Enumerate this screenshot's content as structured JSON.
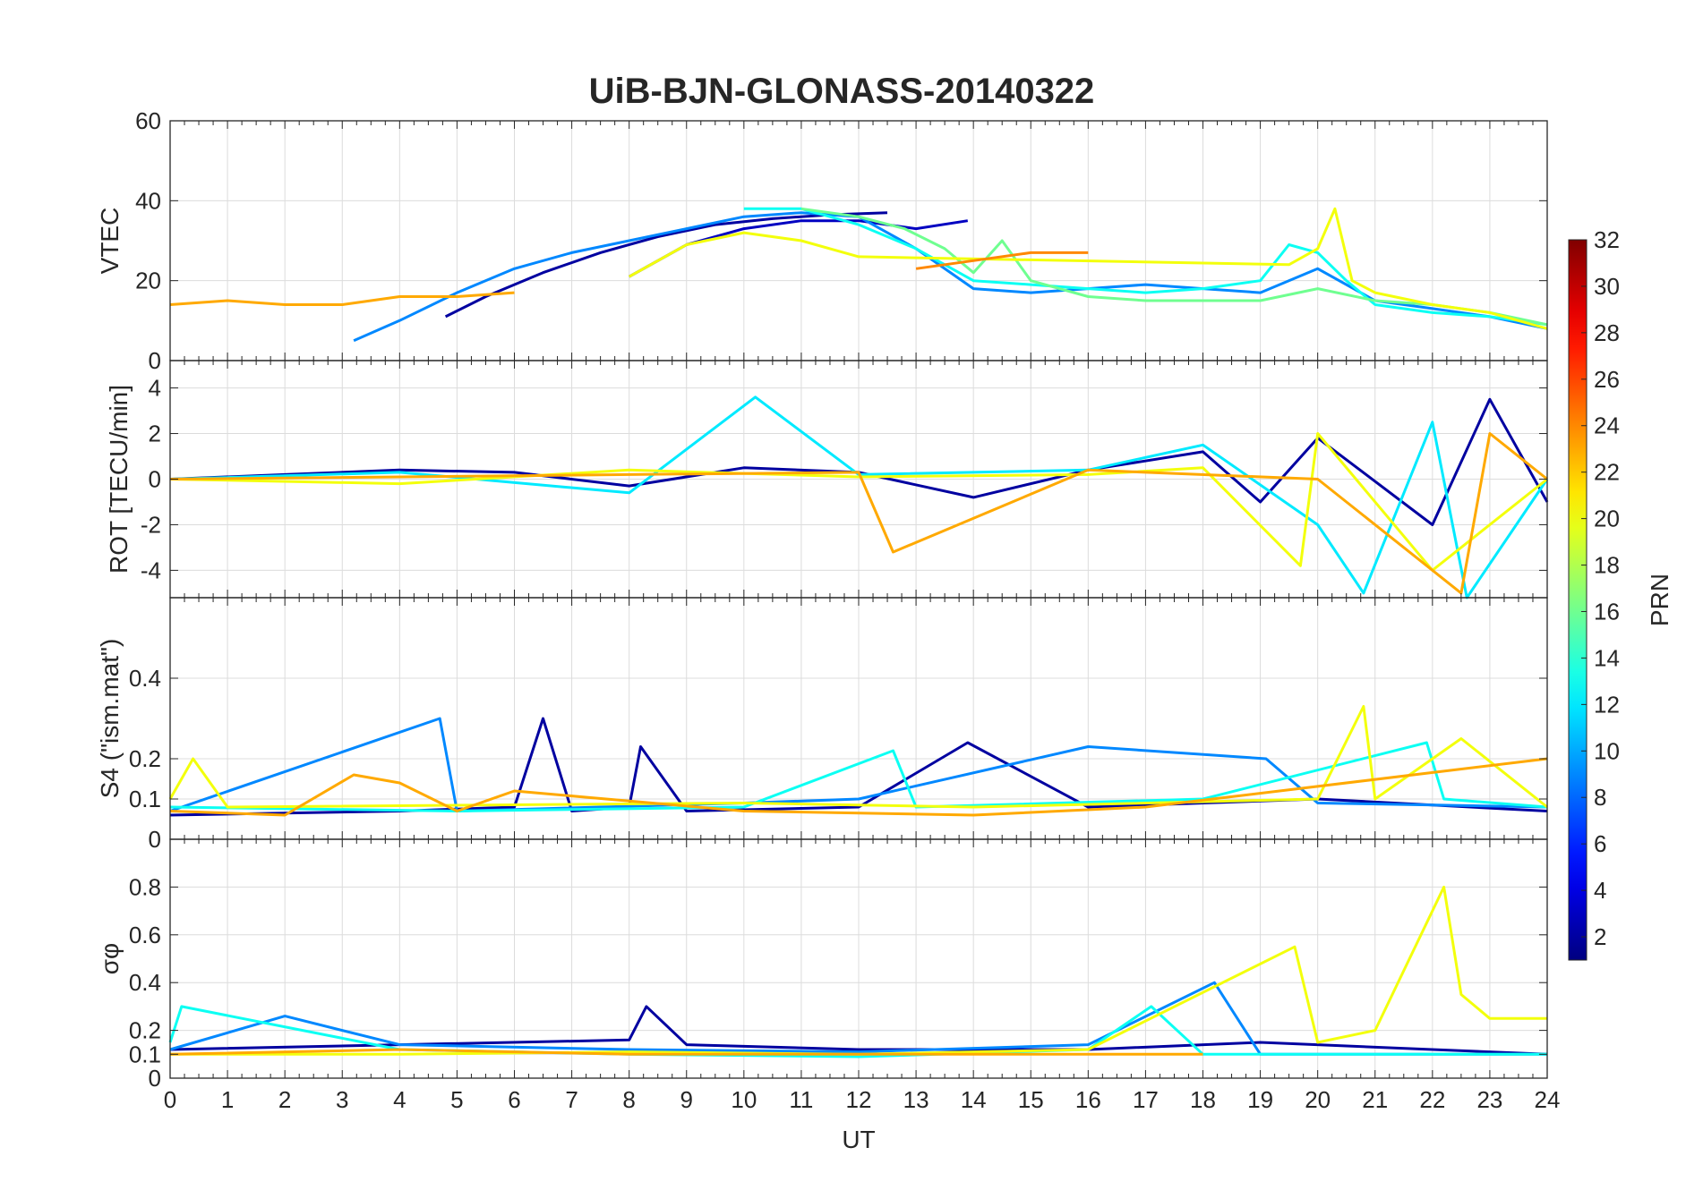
{
  "chart_data": [
    {
      "type": "line",
      "panel": "vtec",
      "title": "UiB-BJN-GLONASS-20140322",
      "ylabel": "VTEC",
      "xlim": [
        0,
        24
      ],
      "ylim": [
        0,
        60
      ],
      "yticks": [
        0,
        20,
        40,
        60
      ],
      "grid": true,
      "series": [
        {
          "prn": 2,
          "x": [
            4.8,
            5.5,
            6.5,
            7.5,
            8.5,
            9.5,
            10.5,
            11.5,
            12.5
          ],
          "y": [
            11,
            16,
            22,
            27,
            31,
            34,
            35.5,
            36.5,
            37
          ]
        },
        {
          "prn": 3,
          "x": [
            8.0,
            9.0,
            10.0,
            11.0,
            12.0,
            13.0,
            13.9
          ],
          "y": [
            21,
            29,
            33,
            35,
            35,
            33,
            35
          ]
        },
        {
          "prn": 9,
          "x": [
            3.2,
            4.0,
            5.0,
            6.0,
            7.0,
            8.0,
            9.0,
            10.0,
            11.0,
            12.0,
            13.0,
            14.0,
            15.0,
            16.0,
            17.0,
            18.0,
            19.0,
            20.0,
            21.0,
            22.0,
            23.0,
            24.0
          ],
          "y": [
            5,
            10,
            17,
            23,
            27,
            30,
            33,
            36,
            37,
            36,
            28,
            18,
            17,
            18,
            19,
            18,
            17,
            23,
            15,
            13,
            11,
            8
          ]
        },
        {
          "prn": 13,
          "x": [
            10.0,
            11.0,
            12.0,
            13.0,
            14.0,
            15.0,
            16.0,
            17.0,
            18.0,
            19.0,
            19.5,
            20.0,
            20.5,
            21.0,
            22.0,
            23.0,
            24.0
          ],
          "y": [
            38,
            38,
            34,
            28,
            20,
            19,
            18,
            17,
            18,
            20,
            29,
            27,
            20,
            14,
            12,
            11,
            9
          ]
        },
        {
          "prn": 16,
          "x": [
            11.0,
            12.0,
            12.8,
            13.5,
            14.0,
            14.5,
            15.0,
            16.0,
            17.0,
            18.0,
            19.0,
            20.0,
            21.0,
            22.0,
            23.0,
            24.0
          ],
          "y": [
            38,
            36,
            33,
            28,
            22,
            30,
            20,
            16,
            15,
            15,
            15,
            18,
            15,
            14,
            12,
            9
          ]
        },
        {
          "prn": 20,
          "x": [
            8.0,
            9.0,
            10.0,
            11.0,
            12.0,
            19.5,
            20.0,
            20.3,
            20.6,
            21.0,
            22.0,
            23.0,
            24.0
          ],
          "y": [
            21,
            29,
            32,
            30,
            26,
            24,
            28,
            38,
            20,
            17,
            14,
            12,
            8
          ]
        },
        {
          "prn": 23,
          "x": [
            0.0,
            1.0,
            2.0,
            3.0,
            4.0,
            5.0,
            6.0
          ],
          "y": [
            14,
            15,
            14,
            14,
            16,
            16,
            17
          ]
        },
        {
          "prn": 24,
          "x": [
            13.0,
            14.0,
            15.0,
            16.0
          ],
          "y": [
            23,
            25,
            27,
            27
          ]
        }
      ]
    },
    {
      "type": "line",
      "panel": "rot",
      "ylabel": "ROT [TECU/min]",
      "xlim": [
        0,
        24
      ],
      "ylim": [
        -5.2,
        5.2
      ],
      "yticks": [
        -4,
        -2,
        0,
        2,
        4
      ],
      "grid": true,
      "series": [
        {
          "prn": 2,
          "x": [
            0.0,
            2.0,
            4.0,
            6.0,
            8.0,
            10.0,
            12.0,
            14.0,
            16.0,
            18.0,
            19.0,
            20.0,
            22.0,
            23.0,
            24.0
          ],
          "y": [
            0,
            0.2,
            0.4,
            0.3,
            -0.3,
            0.5,
            0.3,
            -0.8,
            0.4,
            1.2,
            -1.0,
            1.8,
            -2.0,
            3.5,
            -1.0
          ]
        },
        {
          "prn": 12,
          "x": [
            0.0,
            4.0,
            8.0,
            10.2,
            12.0,
            16.0,
            18.0,
            20.0,
            20.8,
            22.0,
            22.6,
            24.0
          ],
          "y": [
            0,
            0.3,
            -0.6,
            3.6,
            0.2,
            0.4,
            1.5,
            -2.0,
            -5.0,
            2.5,
            -5.2,
            0
          ]
        },
        {
          "prn": 20,
          "x": [
            0.0,
            4.0,
            8.0,
            12.0,
            16.0,
            18.0,
            19.7,
            20.0,
            22.0,
            24.0
          ],
          "y": [
            0,
            -0.2,
            0.4,
            0.1,
            0.2,
            0.5,
            -3.8,
            2.0,
            -4.0,
            0
          ]
        },
        {
          "prn": 23,
          "x": [
            0.0,
            4.0,
            8.0,
            12.0,
            12.6,
            16.0,
            20.0,
            22.5,
            23.0,
            24.0
          ],
          "y": [
            0,
            0.1,
            0.2,
            0.3,
            -3.2,
            0.4,
            0,
            -5.0,
            2.0,
            0
          ]
        }
      ]
    },
    {
      "type": "line",
      "panel": "s4",
      "ylabel": "S4 (\"ism.mat\")",
      "xlim": [
        0,
        24
      ],
      "ylim": [
        0,
        0.6
      ],
      "yticks": [
        0,
        0.1,
        0.2,
        0.4
      ],
      "grid": true,
      "series": [
        {
          "prn": 2,
          "x": [
            0.0,
            4.0,
            6.0,
            6.5,
            7.0,
            8.0,
            8.2,
            9.0,
            12.0,
            13.9,
            16.0,
            20.0,
            24.0
          ],
          "y": [
            0.06,
            0.07,
            0.08,
            0.3,
            0.07,
            0.08,
            0.23,
            0.07,
            0.08,
            0.24,
            0.08,
            0.1,
            0.07
          ]
        },
        {
          "prn": 9,
          "x": [
            0.0,
            4.7,
            5.0,
            10.0,
            12.0,
            16.0,
            19.1,
            20.0,
            24.0
          ],
          "y": [
            0.07,
            0.3,
            0.07,
            0.09,
            0.1,
            0.23,
            0.2,
            0.09,
            0.08
          ]
        },
        {
          "prn": 13,
          "x": [
            0.0,
            5.0,
            10.0,
            12.6,
            13.0,
            18.0,
            21.9,
            22.2,
            24.0
          ],
          "y": [
            0.08,
            0.07,
            0.08,
            0.22,
            0.08,
            0.1,
            0.24,
            0.1,
            0.08
          ]
        },
        {
          "prn": 20,
          "x": [
            0.0,
            0.4,
            1.0,
            10.0,
            14.0,
            20.0,
            20.8,
            21.0,
            22.5,
            24.0
          ],
          "y": [
            0.1,
            0.2,
            0.08,
            0.09,
            0.08,
            0.1,
            0.33,
            0.1,
            0.25,
            0.08
          ]
        },
        {
          "prn": 23,
          "x": [
            0.0,
            2.0,
            3.2,
            4.0,
            5.0,
            6.0,
            10.0,
            14.0,
            17.0,
            24.0
          ],
          "y": [
            0.07,
            0.06,
            0.16,
            0.14,
            0.07,
            0.12,
            0.07,
            0.06,
            0.08,
            0.2
          ]
        }
      ]
    },
    {
      "type": "line",
      "panel": "sigma_phi",
      "ylabel": "σφ",
      "xlabel": "UT",
      "xlim": [
        0,
        24
      ],
      "ylim": [
        0,
        1
      ],
      "yticks": [
        0,
        0.1,
        0.2,
        0.4,
        0.6,
        0.8
      ],
      "xticks": [
        0,
        1,
        2,
        3,
        4,
        5,
        6,
        7,
        8,
        9,
        10,
        11,
        12,
        13,
        14,
        15,
        16,
        17,
        18,
        19,
        20,
        21,
        22,
        23,
        24
      ],
      "grid": true,
      "series": [
        {
          "prn": 2,
          "x": [
            0.0,
            4.0,
            8.0,
            8.3,
            9.0,
            12.0,
            16.0,
            19.0,
            22.0,
            24.0
          ],
          "y": [
            0.12,
            0.14,
            0.16,
            0.3,
            0.14,
            0.12,
            0.12,
            0.15,
            0.12,
            0.1
          ]
        },
        {
          "prn": 9,
          "x": [
            0.0,
            2.0,
            4.0,
            8.0,
            12.0,
            16.0,
            18.2,
            19.0,
            24.0
          ],
          "y": [
            0.12,
            0.26,
            0.14,
            0.12,
            0.11,
            0.14,
            0.4,
            0.1,
            0.1
          ]
        },
        {
          "prn": 13,
          "x": [
            0.0,
            0.2,
            4.0,
            8.0,
            12.0,
            16.0,
            17.1,
            18.0,
            24.0
          ],
          "y": [
            0.15,
            0.3,
            0.12,
            0.1,
            0.09,
            0.12,
            0.3,
            0.1,
            0.1
          ]
        },
        {
          "prn": 20,
          "x": [
            0.0,
            4.0,
            8.0,
            12.0,
            16.0,
            19.6,
            20.0,
            21.0,
            22.2,
            22.5,
            23.0,
            24.0
          ],
          "y": [
            0.1,
            0.1,
            0.11,
            0.1,
            0.12,
            0.55,
            0.15,
            0.2,
            0.8,
            0.35,
            0.25,
            0.25
          ]
        },
        {
          "prn": 23,
          "x": [
            0.0,
            4.0,
            8.0,
            12.0,
            16.0,
            18.0
          ],
          "y": [
            0.1,
            0.12,
            0.1,
            0.1,
            0.1,
            0.1
          ]
        }
      ]
    }
  ],
  "colorbar": {
    "label": "PRN",
    "range": [
      1,
      32
    ],
    "ticks": [
      2,
      4,
      6,
      8,
      10,
      12,
      14,
      16,
      18,
      20,
      22,
      24,
      26,
      28,
      30,
      32
    ],
    "colormap": "jet"
  }
}
